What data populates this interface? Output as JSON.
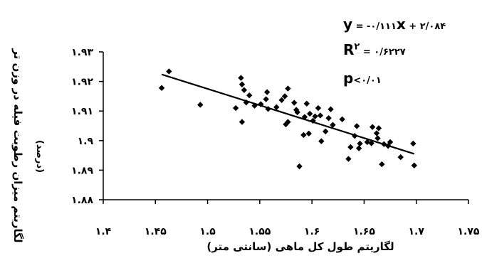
{
  "chart_data": {
    "type": "scatter",
    "xlabel": "لگاریتم طول کل ماهی (سانتی متر)",
    "ylabel": "لگاریتم میزان رطوبت فیله در وزن تر",
    "ylabel2": "(درصد)",
    "xlim": [
      1.4,
      1.75
    ],
    "ylim": [
      1.88,
      1.93
    ],
    "xticks": [
      1.4,
      1.45,
      1.5,
      1.55,
      1.6,
      1.65,
      1.7,
      1.75
    ],
    "yticks": [
      1.88,
      1.89,
      1.9,
      1.91,
      1.92,
      1.93
    ],
    "xtick_labels": [
      "۱.۴",
      "۱.۴۵",
      "۱.۵",
      "۱.۵۵",
      "۱.۶",
      "۱.۶۵",
      "۱.۷",
      "۱.۷۵"
    ],
    "ytick_labels": [
      "۱.۸۸",
      "۱.۸۹",
      "۱.۹",
      "۱.۹۱",
      "۱.۹۲",
      "۱.۹۳"
    ],
    "trendline": {
      "slope": -0.111,
      "intercept": 2.084
    },
    "annotations": {
      "equation_lead": "y",
      "equation_rest": " = -۰/۱۱۱",
      "equation_x": "x",
      "equation_tail": " + ۲/۰۸۴",
      "r2_lead": "R",
      "r2_sup": "۲",
      "r2_rest": " = ۰/۶۲۲۷",
      "p_lead": "p",
      "p_rest": "<۰/۰۱"
    },
    "grid": false,
    "marker_color": "#000000",
    "points": [
      [
        1.456,
        1.9178
      ],
      [
        1.463,
        1.9234
      ],
      [
        1.493,
        1.9121
      ],
      [
        1.527,
        1.911
      ],
      [
        1.532,
        1.9212
      ],
      [
        1.533,
        1.919
      ],
      [
        1.535,
        1.9171
      ],
      [
        1.533,
        1.9063
      ],
      [
        1.537,
        1.9129
      ],
      [
        1.54,
        1.9153
      ],
      [
        1.545,
        1.9118
      ],
      [
        1.551,
        1.9123
      ],
      [
        1.556,
        1.914
      ],
      [
        1.557,
        1.9164
      ],
      [
        1.558,
        1.9107
      ],
      [
        1.566,
        1.9113
      ],
      [
        1.571,
        1.9137
      ],
      [
        1.574,
        1.915
      ],
      [
        1.577,
        1.9176
      ],
      [
        1.575,
        1.9055
      ],
      [
        1.577,
        1.9063
      ],
      [
        1.583,
        1.9128
      ],
      [
        1.585,
        1.9104
      ],
      [
        1.586,
        1.9096
      ],
      [
        1.588,
        1.8913
      ],
      [
        1.592,
        1.9019
      ],
      [
        1.593,
        1.908
      ],
      [
        1.595,
        1.9125
      ],
      [
        1.597,
        1.9024
      ],
      [
        1.598,
        1.9091
      ],
      [
        1.601,
        1.9067
      ],
      [
        1.603,
        1.9082
      ],
      [
        1.606,
        1.911
      ],
      [
        1.608,
        1.9085
      ],
      [
        1.609,
        1.8998
      ],
      [
        1.613,
        1.9031
      ],
      [
        1.616,
        1.9076
      ],
      [
        1.618,
        1.9106
      ],
      [
        1.62,
        1.9053
      ],
      [
        1.629,
        1.9072
      ],
      [
        1.635,
        1.8938
      ],
      [
        1.637,
        1.8978
      ],
      [
        1.641,
        1.9016
      ],
      [
        1.643,
        1.9049
      ],
      [
        1.645,
        1.8974
      ],
      [
        1.646,
        1.899
      ],
      [
        1.653,
        1.8995
      ],
      [
        1.657,
        1.8991
      ],
      [
        1.658,
        1.9046
      ],
      [
        1.662,
        1.9025
      ],
      [
        1.663,
        1.9008
      ],
      [
        1.664,
        1.9042
      ],
      [
        1.667,
        1.892
      ],
      [
        1.669,
        1.8988
      ],
      [
        1.673,
        1.8982
      ],
      [
        1.675,
        1.8995
      ],
      [
        1.685,
        1.8944
      ],
      [
        1.697,
        1.899
      ],
      [
        1.698,
        1.8916
      ]
    ]
  }
}
